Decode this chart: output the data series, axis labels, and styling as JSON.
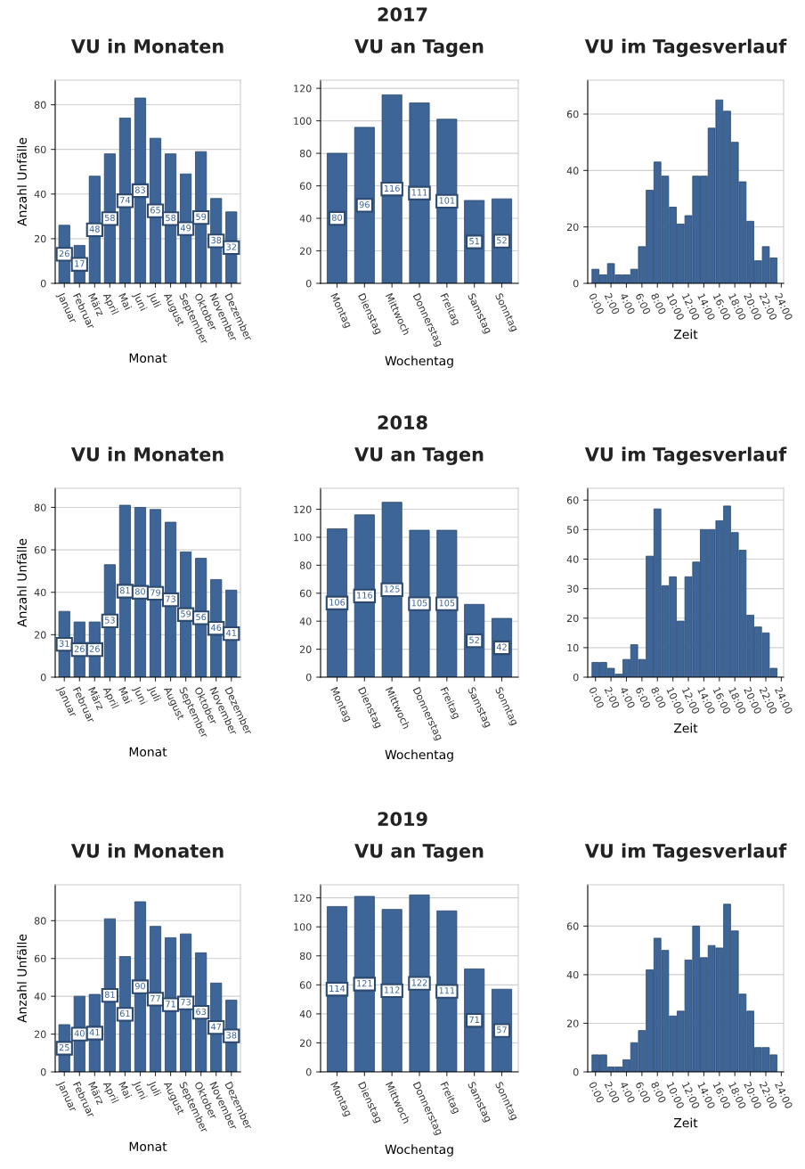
{
  "chart_data": [
    {
      "type": "bar",
      "title": "VU in Monaten",
      "xlabel": "Monat",
      "ylabel": "Anzahl Unfälle",
      "categories": [
        "Januar",
        "Februar",
        "März",
        "April",
        "Mai",
        "Juni",
        "Juli",
        "August",
        "September",
        "Oktober",
        "November",
        "Dezember"
      ],
      "values": [
        26,
        17,
        48,
        58,
        74,
        83,
        65,
        58,
        49,
        59,
        38,
        32
      ],
      "color": "#3d6597",
      "data_labels": true,
      "ylim": [
        0,
        91
      ],
      "yticks": [
        0,
        20,
        40,
        60,
        80
      ],
      "grid": "y"
    },
    {
      "type": "bar",
      "title": "VU an Tagen",
      "xlabel": "Wochentag",
      "annotations": [
        "2017"
      ],
      "categories": [
        "Montag",
        "Dienstag",
        "Mittwoch",
        "Donnerstag",
        "Freitag",
        "Samstag",
        "Sonntag"
      ],
      "values": [
        80,
        96,
        116,
        111,
        101,
        51,
        52
      ],
      "color": "#3d6597",
      "data_labels": true,
      "ylim": [
        0,
        125
      ],
      "yticks": [
        0,
        20,
        40,
        60,
        80,
        100,
        120
      ],
      "grid": "y"
    },
    {
      "type": "bar",
      "title": "VU im Tagesverlauf",
      "xlabel": "Zeit",
      "x": [
        0,
        1,
        2,
        3,
        4,
        5,
        6,
        7,
        8,
        9,
        10,
        11,
        12,
        13,
        14,
        15,
        16,
        17,
        18,
        19,
        20,
        21,
        22,
        23
      ],
      "values": [
        5,
        3,
        7,
        3,
        3,
        5,
        13,
        33,
        43,
        38,
        27,
        21,
        24,
        38,
        38,
        55,
        65,
        61,
        50,
        36,
        22,
        8,
        13,
        9
      ],
      "color": "#3d6597",
      "xlim": [
        -1,
        24.3
      ],
      "xticks": [
        {
          "value": 0,
          "label": "0:00"
        },
        {
          "value": 2,
          "label": "2:00"
        },
        {
          "value": 4,
          "label": "4:00"
        },
        {
          "value": 6,
          "label": "6:00"
        },
        {
          "value": 8,
          "label": "8:00"
        },
        {
          "value": 10,
          "label": "10:00"
        },
        {
          "value": 12,
          "label": "12:00"
        },
        {
          "value": 14,
          "label": "14:00"
        },
        {
          "value": 16,
          "label": "16:00"
        },
        {
          "value": 18,
          "label": "18:00"
        },
        {
          "value": 20,
          "label": "20:00"
        },
        {
          "value": 22,
          "label": "22:00"
        },
        {
          "value": 24,
          "label": "24:00"
        }
      ],
      "ylim": [
        0,
        72
      ],
      "yticks": [
        0,
        20,
        40,
        60
      ],
      "grid": "y"
    },
    {
      "type": "bar",
      "title": "VU in Monaten",
      "xlabel": "Monat",
      "ylabel": "Anzahl Unfälle",
      "categories": [
        "Januar",
        "Februar",
        "März",
        "April",
        "Mai",
        "Juni",
        "Juli",
        "August",
        "September",
        "Oktober",
        "November",
        "Dezember"
      ],
      "values": [
        31,
        26,
        26,
        53,
        81,
        80,
        79,
        73,
        59,
        56,
        46,
        41
      ],
      "color": "#3d6597",
      "data_labels": true,
      "ylim": [
        0,
        89
      ],
      "yticks": [
        0,
        20,
        40,
        60,
        80
      ],
      "grid": "y"
    },
    {
      "type": "bar",
      "title": "VU an Tagen",
      "xlabel": "Wochentag",
      "annotations": [
        "2018"
      ],
      "categories": [
        "Montag",
        "Dienstag",
        "Mittwoch",
        "Donnerstag",
        "Freitag",
        "Samstag",
        "Sonntag"
      ],
      "values": [
        106,
        116,
        125,
        105,
        105,
        52,
        42
      ],
      "color": "#3d6597",
      "data_labels": true,
      "ylim": [
        0,
        135
      ],
      "yticks": [
        0,
        20,
        40,
        60,
        80,
        100,
        120
      ],
      "grid": "y"
    },
    {
      "type": "bar",
      "title": "VU im Tagesverlauf",
      "xlabel": "Zeit",
      "x": [
        0,
        1,
        2,
        3,
        4,
        5,
        6,
        7,
        8,
        9,
        10,
        11,
        12,
        13,
        14,
        15,
        16,
        17,
        18,
        19,
        20,
        21,
        22,
        23
      ],
      "values": [
        5,
        5,
        3,
        1,
        6,
        11,
        6,
        41,
        57,
        31,
        34,
        19,
        34,
        39,
        50,
        50,
        53,
        58,
        49,
        43,
        21,
        17,
        15,
        3
      ],
      "color": "#3d6597",
      "xlim": [
        -1,
        24.3
      ],
      "xticks": [
        {
          "value": 0,
          "label": "0:00"
        },
        {
          "value": 2,
          "label": "2:00"
        },
        {
          "value": 4,
          "label": "4:00"
        },
        {
          "value": 6,
          "label": "6:00"
        },
        {
          "value": 8,
          "label": "8:00"
        },
        {
          "value": 10,
          "label": "10:00"
        },
        {
          "value": 12,
          "label": "12:00"
        },
        {
          "value": 14,
          "label": "14:00"
        },
        {
          "value": 16,
          "label": "16:00"
        },
        {
          "value": 18,
          "label": "18:00"
        },
        {
          "value": 20,
          "label": "20:00"
        },
        {
          "value": 22,
          "label": "22:00"
        },
        {
          "value": 24,
          "label": "24:00"
        }
      ],
      "ylim": [
        0,
        64
      ],
      "yticks": [
        0,
        10,
        20,
        30,
        40,
        50,
        60
      ],
      "grid": "y"
    },
    {
      "type": "bar",
      "title": "VU in Monaten",
      "xlabel": "Monat",
      "ylabel": "Anzahl Unfälle",
      "categories": [
        "Januar",
        "Februar",
        "März",
        "April",
        "Mai",
        "Juni",
        "Juli",
        "August",
        "September",
        "Oktober",
        "November",
        "Dezember"
      ],
      "values": [
        25,
        40,
        41,
        81,
        61,
        90,
        77,
        71,
        73,
        63,
        47,
        38
      ],
      "color": "#3d6597",
      "data_labels": true,
      "ylim": [
        0,
        99
      ],
      "yticks": [
        0,
        20,
        40,
        60,
        80
      ],
      "grid": "y"
    },
    {
      "type": "bar",
      "title": "VU an Tagen",
      "xlabel": "Wochentag",
      "annotations": [
        "2019"
      ],
      "categories": [
        "Montag",
        "Dienstag",
        "Mittwoch",
        "Donnerstag",
        "Freitag",
        "Samstag",
        "Sonntag"
      ],
      "values": [
        114,
        121,
        112,
        122,
        111,
        71,
        57
      ],
      "color": "#3d6597",
      "data_labels": true,
      "ylim": [
        0,
        129
      ],
      "yticks": [
        0,
        20,
        40,
        60,
        80,
        100,
        120
      ],
      "grid": "y"
    },
    {
      "type": "bar",
      "title": "VU im Tagesverlauf",
      "xlabel": "Zeit",
      "x": [
        0,
        1,
        2,
        3,
        4,
        5,
        6,
        7,
        8,
        9,
        10,
        11,
        12,
        13,
        14,
        15,
        16,
        17,
        18,
        19,
        20,
        21,
        22,
        23
      ],
      "values": [
        7,
        7,
        2,
        2,
        5,
        12,
        17,
        42,
        55,
        50,
        23,
        25,
        46,
        60,
        47,
        52,
        51,
        69,
        58,
        32,
        25,
        10,
        10,
        7
      ],
      "color": "#3d6597",
      "xlim": [
        -1,
        24.3
      ],
      "xticks": [
        {
          "value": 0,
          "label": "0:00"
        },
        {
          "value": 2,
          "label": "2:00"
        },
        {
          "value": 4,
          "label": "4:00"
        },
        {
          "value": 6,
          "label": "6:00"
        },
        {
          "value": 8,
          "label": "8:00"
        },
        {
          "value": 10,
          "label": "10:00"
        },
        {
          "value": 12,
          "label": "12:00"
        },
        {
          "value": 14,
          "label": "14:00"
        },
        {
          "value": 16,
          "label": "16:00"
        },
        {
          "value": 18,
          "label": "18:00"
        },
        {
          "value": 20,
          "label": "20:00"
        },
        {
          "value": 22,
          "label": "22:00"
        },
        {
          "value": 24,
          "label": "24:00"
        }
      ],
      "ylim": [
        0,
        77
      ],
      "yticks": [
        0,
        20,
        40,
        60
      ],
      "grid": "y"
    }
  ]
}
